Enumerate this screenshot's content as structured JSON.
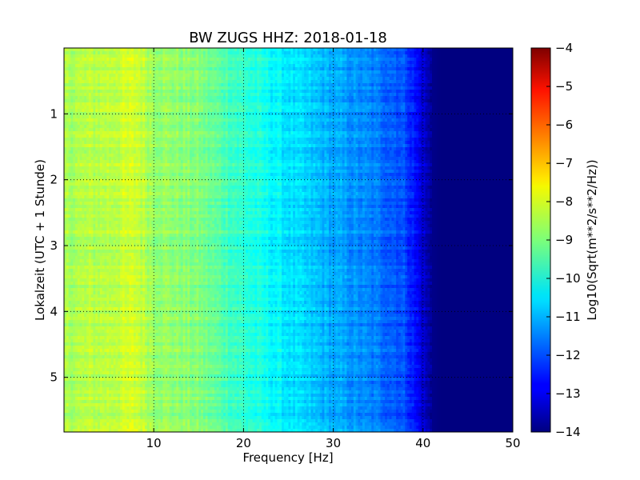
{
  "chart_data": {
    "type": "heatmap",
    "title": "BW ZUGS HHZ: 2018-01-18",
    "xlabel": "Frequency [Hz]",
    "ylabel": "Lokalzeit (UTC + 1 Stunde)",
    "colorbar_label": "Log10(Sqrt(m**2/s**2/Hz))",
    "xlim": [
      0,
      50
    ],
    "ylim": [
      0,
      5.83
    ],
    "y_inverted": true,
    "x_ticks": [
      10,
      20,
      30,
      40,
      50
    ],
    "y_ticks": [
      1,
      2,
      3,
      4,
      5
    ],
    "colorbar_range": [
      -14,
      -4
    ],
    "colorbar_ticks": [
      -4,
      -5,
      -6,
      -7,
      -8,
      -9,
      -10,
      -11,
      -12,
      -13,
      -14
    ],
    "colormap": "jet",
    "grid": true,
    "grid_style": "dotted",
    "spectrum_profile": {
      "frequency_hz": [
        0,
        5,
        8,
        10,
        15,
        20,
        25,
        30,
        35,
        38,
        40,
        41,
        42,
        50
      ],
      "log10_amplitude": [
        -8.6,
        -8.4,
        -8.2,
        -8.7,
        -9.0,
        -9.8,
        -10.5,
        -11.1,
        -11.6,
        -12.0,
        -13.2,
        -13.9,
        -14.0,
        -14.0
      ]
    }
  }
}
